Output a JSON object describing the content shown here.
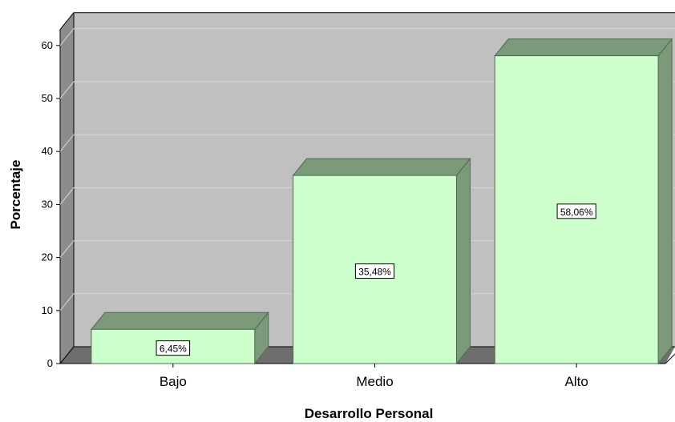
{
  "chart_data": {
    "type": "bar",
    "style": "3d",
    "categories": [
      "Bajo",
      "Medio",
      "Alto"
    ],
    "values": [
      6.45,
      35.48,
      58.06
    ],
    "data_labels": [
      "6,45%",
      "35,48%",
      "58,06%"
    ],
    "xlabel": "Desarrollo Personal",
    "ylabel": "Porcentaje",
    "ylim": [
      0,
      60
    ],
    "yticks": [
      0,
      10,
      20,
      30,
      40,
      50,
      60
    ],
    "grid": true,
    "legend": "none",
    "colors": {
      "bar_front": "#ccffcc",
      "bar_side": "#7a9a7a",
      "plot_back": "#c0c0c0",
      "plot_floor": "#6e6e6e",
      "plot_left_wall": "#8c8c8c",
      "gridline": "#d8d8d8",
      "label_border": "#000000"
    }
  }
}
